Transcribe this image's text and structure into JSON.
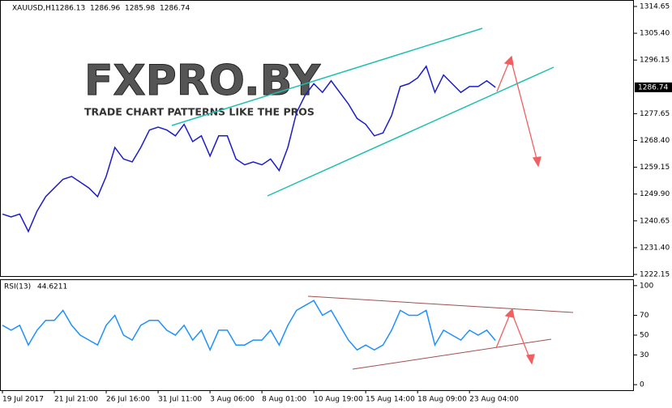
{
  "chart_data": [
    {
      "type": "line",
      "title": "XAUUSD,H1",
      "ohlc": [
        1286.13,
        1286.96,
        1285.98,
        1286.74
      ],
      "watermark": "FXPRO.BY",
      "watermark_subtitle": "TRADE CHART PATTERNS LIKE THE PROS",
      "color": "#1c1ccc",
      "categories": [
        "19 Jul 2017",
        null,
        null,
        null,
        null,
        null,
        "21 Jul 21:00",
        null,
        null,
        null,
        null,
        null,
        "26 Jul 16:00",
        null,
        null,
        null,
        null,
        null,
        "31 Jul 11:00",
        null,
        null,
        null,
        null,
        null,
        "3 Aug 06:00",
        null,
        null,
        null,
        null,
        null,
        "8 Aug 01:00",
        null,
        null,
        null,
        null,
        null,
        "10 Aug 19:00",
        null,
        null,
        null,
        null,
        null,
        "15 Aug 14:00",
        null,
        null,
        null,
        null,
        null,
        "18 Aug 09:00",
        null,
        null,
        null,
        null,
        null,
        "23 Aug 04:00",
        null,
        null,
        null
      ],
      "values": [
        1243,
        1242,
        1243,
        1237,
        1244,
        1249,
        1252,
        1255,
        1256,
        1254,
        1252,
        1249,
        1256,
        1266,
        1262,
        1261,
        1266,
        1272,
        1273,
        1272,
        1270,
        1274,
        1268,
        1270,
        1263,
        1270,
        1270,
        1262,
        1260,
        1261,
        1260,
        1262,
        1258,
        1266,
        1278,
        1284,
        1288,
        1285,
        1289,
        1285,
        1281,
        1276,
        1274,
        1270,
        1271,
        1277,
        1287,
        1288,
        1290,
        1294,
        1285,
        1291,
        1288,
        1285,
        1287,
        1287,
        1289,
        1286.74
      ],
      "ylim": [
        1221.6,
        1316.6
      ],
      "yticks": [
        1314.65,
        {
          "value": 1305.4,
          "label": "1305.40"
        },
        1296.15,
        1277.65,
        {
          "value": 1268.4,
          "label": "1268.40"
        },
        1259.15,
        {
          "value": 1249.9,
          "label": "1249.90"
        },
        1240.65,
        {
          "value": 1231.4,
          "label": "1231.40"
        },
        1222.15
      ]
    },
    {
      "type": "line",
      "title": "RSI(13)",
      "value": 44.6211,
      "color": "#1e90ff",
      "values": [
        60,
        55,
        60,
        40,
        55,
        65,
        65,
        75,
        60,
        50,
        45,
        40,
        60,
        70,
        50,
        45,
        60,
        65,
        65,
        55,
        50,
        60,
        45,
        55,
        35,
        55,
        55,
        40,
        40,
        45,
        45,
        55,
        40,
        60,
        75,
        80,
        85,
        70,
        75,
        60,
        45,
        35,
        40,
        35,
        40,
        55,
        75,
        70,
        70,
        75,
        40,
        55,
        50,
        45,
        55,
        50,
        55,
        44.6211
      ],
      "ylim": [
        -5.6,
        105.6
      ],
      "yticks": [
        100,
        70,
        50,
        30,
        0
      ]
    }
  ]
}
